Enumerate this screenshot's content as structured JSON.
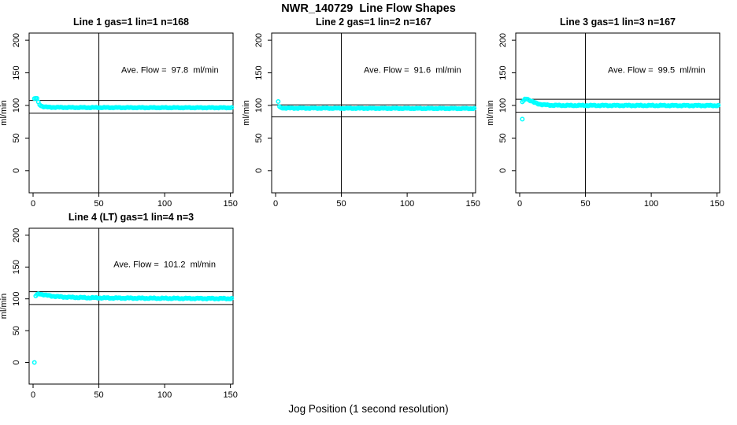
{
  "chart_data": {
    "type": "scatter",
    "main_title": "NWR_140729  Line Flow Shapes",
    "shared_xlabel": "Jog Position (1 second resolution)",
    "point_color": "#00FFFF",
    "axis_color": "#000000",
    "panels": [
      {
        "title": "Line 1 gas=1 lin=1 n=168",
        "n": 168,
        "ave_flow_ml_min": 97.8,
        "annotation": {
          "text": "Ave. Flow =  97.8  ml/min",
          "x": 104,
          "y": 150
        },
        "ylabel": "ml/min",
        "x_ticks": [
          0,
          50,
          100,
          150
        ],
        "y_ticks": [
          0,
          50,
          100,
          150,
          200
        ],
        "xlim": [
          -3,
          152
        ],
        "ylim": [
          -34,
          211
        ],
        "vline_x": 50,
        "hlines": [
          107.6,
          88.0
        ],
        "point_color": "#00FFFF",
        "outlier_points": [],
        "band": {
          "jitter": 0.7,
          "anchors": [
            [
              1,
              110
            ],
            [
              2,
              111
            ],
            [
              3,
              110.5
            ],
            [
              4,
              105
            ],
            [
              5,
              101.5
            ],
            [
              6,
              99.5
            ],
            [
              8,
              98
            ],
            [
              12,
              97.2
            ],
            [
              30,
              96.8
            ],
            [
              80,
              96.6
            ],
            [
              151,
              96.5
            ]
          ]
        }
      },
      {
        "title": "Line 2 gas=1 lin=2 n=167",
        "n": 167,
        "ave_flow_ml_min": 91.6,
        "annotation": {
          "text": "Ave. Flow =  91.6  ml/min",
          "x": 104,
          "y": 150
        },
        "ylabel": "ml/min",
        "x_ticks": [
          0,
          50,
          100,
          150
        ],
        "y_ticks": [
          0,
          50,
          100,
          150,
          200
        ],
        "xlim": [
          -3,
          152
        ],
        "ylim": [
          -34,
          211
        ],
        "vline_x": 50,
        "hlines": [
          100.8,
          82.4
        ],
        "point_color": "#00FFFF",
        "outlier_points": [
          [
            2,
            106
          ]
        ],
        "band": {
          "jitter": 0.7,
          "anchors": [
            [
              3,
              98
            ],
            [
              4,
              96.5
            ],
            [
              6,
              96
            ],
            [
              15,
              95.8
            ],
            [
              60,
              95.6
            ],
            [
              151,
              95.3
            ]
          ]
        }
      },
      {
        "title": "Line 3 gas=1 lin=3 n=167",
        "n": 167,
        "ave_flow_ml_min": 99.5,
        "annotation": {
          "text": "Ave. Flow =  99.5  ml/min",
          "x": 104,
          "y": 150
        },
        "ylabel": "ml/min",
        "x_ticks": [
          0,
          50,
          100,
          150
        ],
        "y_ticks": [
          0,
          50,
          100,
          150,
          200
        ],
        "xlim": [
          -3,
          152
        ],
        "ylim": [
          -34,
          211
        ],
        "vline_x": 50,
        "hlines": [
          109.5,
          89.6
        ],
        "point_color": "#00FFFF",
        "outlier_points": [
          [
            2,
            79
          ]
        ],
        "band": {
          "jitter": 0.9,
          "anchors": [
            [
              2,
              105.5
            ],
            [
              3,
              107
            ],
            [
              4,
              109.5
            ],
            [
              5,
              110.5
            ],
            [
              6,
              110
            ],
            [
              7,
              108.5
            ],
            [
              9,
              106.5
            ],
            [
              11,
              104.5
            ],
            [
              14,
              102.5
            ],
            [
              18,
              101
            ],
            [
              24,
              100.3
            ],
            [
              35,
              100
            ],
            [
              151,
              99.8
            ]
          ]
        }
      },
      {
        "title": "Line 4 (LT) gas=1 lin=4 n=3",
        "n": 3,
        "ave_flow_ml_min": 101.2,
        "annotation": {
          "text": "Ave. Flow =  101.2  ml/min",
          "x": 100,
          "y": 150
        },
        "ylabel": "ml/min",
        "x_ticks": [
          0,
          50,
          100,
          150
        ],
        "y_ticks": [
          0,
          50,
          100,
          150,
          200
        ],
        "xlim": [
          -3,
          152
        ],
        "ylim": [
          -34,
          211
        ],
        "vline_x": 50,
        "hlines": [
          111.3,
          91.1
        ],
        "point_color": "#00FFFF",
        "outlier_points": [
          [
            1,
            0
          ]
        ],
        "band": {
          "jitter": 1.0,
          "anchors": [
            [
              2,
              104.5
            ],
            [
              3,
              106.5
            ],
            [
              4,
              107.5
            ],
            [
              5,
              108
            ],
            [
              7,
              107
            ],
            [
              10,
              105.5
            ],
            [
              14,
              104.5
            ],
            [
              20,
              103.3
            ],
            [
              28,
              102.5
            ],
            [
              40,
              101.8
            ],
            [
              60,
              101.3
            ],
            [
              90,
              100.9
            ],
            [
              151,
              100.4
            ]
          ]
        }
      }
    ]
  }
}
